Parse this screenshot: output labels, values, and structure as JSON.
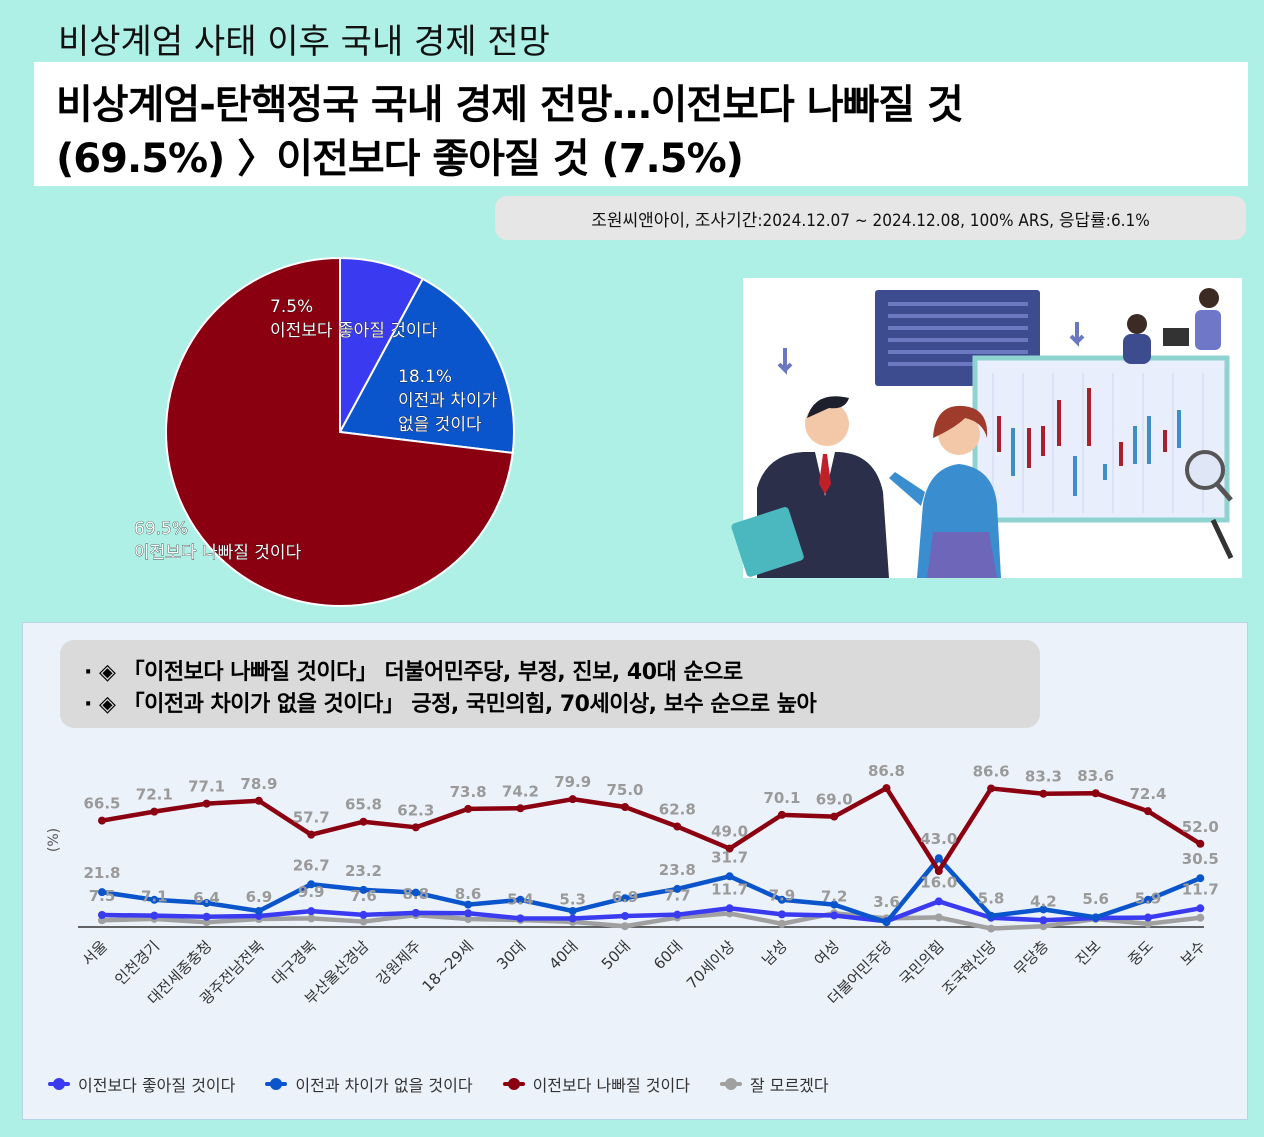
{
  "top_title": "비상계엄 사태 이후 국내 경제 전망",
  "headline": {
    "line1": "비상계엄-탄핵정국 국내 경제 전망…이전보다 나빠질 것",
    "line2": "(69.5%) 〉이전보다 좋아질 것 (7.5%)"
  },
  "survey_info": "조원씨앤아이, 조사기간:2024.12.07 ~ 2024.12.08, 100% ARS, 응답률:6.1%",
  "pie": {
    "slices": [
      {
        "pct": "7.5%",
        "label": "이전보다 좋아질 것이다",
        "value": 7.5,
        "color": "#3a3af0"
      },
      {
        "pct": "18.1%",
        "label1": "이전과 차이가",
        "label2": "없을 것이다",
        "value": 18.1,
        "color": "#0a55cc"
      },
      {
        "pct": "69.5%",
        "label": "이전보다 나빠질 것이다",
        "value": 69.5,
        "color": "#8b0010"
      }
    ]
  },
  "illustration": {
    "icon": "business-chart-illustration"
  },
  "summary": {
    "line1": "· ◈ 「이전보다 나빠질 것이다」 더불어민주당, 부정, 진보, 40대 순으로",
    "line2": "· ◈ 「이전과 차이가 없을 것이다」 긍정, 국민의힘, 70세이상, 보수 순으로 높아"
  },
  "chart_data": {
    "type": "line",
    "ylabel": "(%)",
    "categories": [
      "서울",
      "인천경기",
      "대전세종충청",
      "광주전남전북",
      "대구경북",
      "부산울산경남",
      "강원제주",
      "18~29세",
      "30대",
      "40대",
      "50대",
      "60대",
      "70세이상",
      "남성",
      "여성",
      "더불어민주당",
      "국민의힘",
      "조국혁신당",
      "무당층",
      "진보",
      "중도",
      "보수"
    ],
    "series": [
      {
        "name": "이전보다 좋아질 것이다",
        "color": "#3a3af0",
        "values": [
          7.5,
          7.1,
          6.4,
          6.9,
          9.9,
          7.6,
          8.8,
          8.6,
          5.4,
          5.3,
          6.9,
          7.7,
          11.7,
          7.9,
          7.2,
          3.6,
          16.0,
          5.8,
          4.2,
          5.6,
          5.9,
          11.7
        ]
      },
      {
        "name": "이전과 차이가 없을 것이다",
        "color": "#0a55cc",
        "values": [
          21.8,
          17.0,
          15.0,
          10.0,
          26.7,
          23.2,
          21.5,
          14.0,
          17.0,
          10.0,
          18.0,
          23.8,
          31.7,
          17.0,
          14.0,
          3.0,
          43.0,
          7.0,
          11.0,
          6.0,
          17.0,
          30.5
        ]
      },
      {
        "name": "이전보다 나빠질 것이다",
        "color": "#8b0010",
        "values": [
          66.5,
          72.1,
          77.1,
          78.9,
          57.7,
          65.8,
          62.3,
          73.8,
          74.2,
          79.9,
          75.0,
          62.8,
          49.0,
          70.1,
          69.0,
          86.8,
          35.0,
          86.6,
          83.3,
          83.6,
          72.4,
          52.0
        ]
      },
      {
        "name": "잘 모르겠다",
        "color": "#a0a0a0",
        "values": [
          4.2,
          5.1,
          3.0,
          5.0,
          5.4,
          3.4,
          7.4,
          5.0,
          4.4,
          3.2,
          0.5,
          5.9,
          8.5,
          2.0,
          8.6,
          5.4,
          6.0,
          -1.0,
          0.5,
          5.0,
          2.0,
          5.8
        ]
      }
    ],
    "labels": {
      "이전보다 나빠질 것이다": [
        "66.5",
        "72.1",
        "77.1",
        "78.9",
        "57.7",
        "65.8",
        "62.3",
        "73.8",
        "74.2",
        "79.9",
        "75.0",
        "62.8",
        "49.0",
        "70.1",
        "69.0",
        "86.8",
        "",
        "86.6",
        "83.3",
        "83.6",
        "72.4",
        "52.0"
      ],
      "이전과 차이가 없을 것이다": [
        "21.8",
        "",
        "",
        "",
        "26.7",
        "23.2",
        "",
        "",
        "",
        "",
        "",
        "23.8",
        "31.7",
        "",
        "",
        "",
        "43.0",
        "",
        "",
        "",
        "",
        "30.5"
      ],
      "이전보다 좋아질 것이다": [
        "7.5",
        "7.1",
        "6.4",
        "6.9",
        "9.9",
        "7.6",
        "8.8",
        "8.6",
        "5.4",
        "5.3",
        "6.9",
        "7.7",
        "11.7",
        "7.9",
        "7.2",
        "3.6",
        "16.0",
        "5.8",
        "4.2",
        "5.6",
        "5.9",
        "11.7"
      ]
    },
    "legend_position": "bottom-left",
    "grid": false
  }
}
